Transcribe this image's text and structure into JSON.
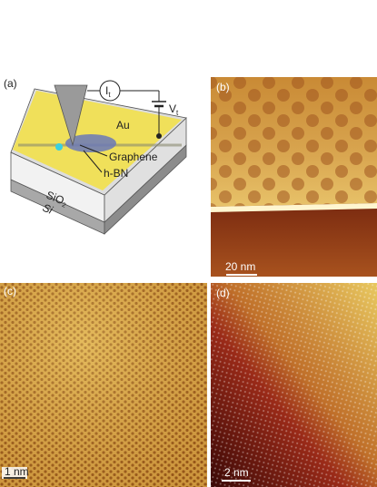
{
  "panels": {
    "a": {
      "label": "(a)",
      "current": {
        "symbol": "I",
        "subscript": "t"
      },
      "bias": {
        "symbol": "V",
        "subscript": "t"
      },
      "gold": "Au",
      "graphene": "Graphene",
      "hbn": "h-BN",
      "oxide": {
        "text": "SiO",
        "subscript": "2"
      },
      "silicon": "Si"
    },
    "b": {
      "label": "(b)",
      "scale_bar": "20 nm"
    },
    "c": {
      "label": "(c)",
      "scale_bar": "1 nm"
    },
    "d": {
      "label": "(d)",
      "scale_bar": "2 nm"
    }
  }
}
